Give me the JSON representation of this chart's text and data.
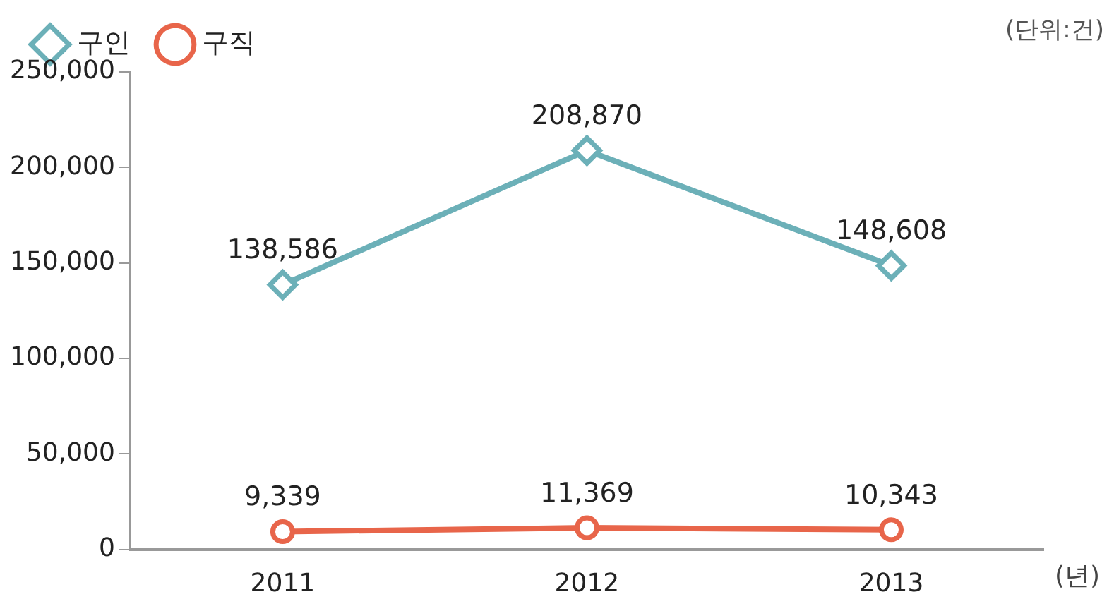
{
  "chart_data": {
    "type": "line",
    "categories": [
      "2011",
      "2012",
      "2013"
    ],
    "series": [
      {
        "name": "구인",
        "color": "#6cb0b8",
        "values": [
          138586,
          208870,
          148608
        ],
        "value_labels": [
          "138,586",
          "208,870",
          "148,608"
        ],
        "marker": "diamond"
      },
      {
        "name": "구직",
        "color": "#e8654a",
        "values": [
          9339,
          11369,
          10343
        ],
        "value_labels": [
          "9,339",
          "11,369",
          "10,343"
        ],
        "marker": "circle"
      }
    ],
    "ylim": [
      0,
      250000
    ],
    "yticks": [
      0,
      {
        "value": 50000,
        "label": "50,000"
      },
      {
        "value": 100000,
        "label": "100,000"
      },
      {
        "value": 150000,
        "label": "150,000"
      },
      {
        "value": 200000,
        "label": "200,000"
      },
      {
        "value": 250000,
        "label": "250,000"
      }
    ],
    "xlabel": "(년)",
    "annotations": [
      "(단위:건)"
    ],
    "legend": "top left",
    "grid": false,
    "line_style": "solid"
  }
}
